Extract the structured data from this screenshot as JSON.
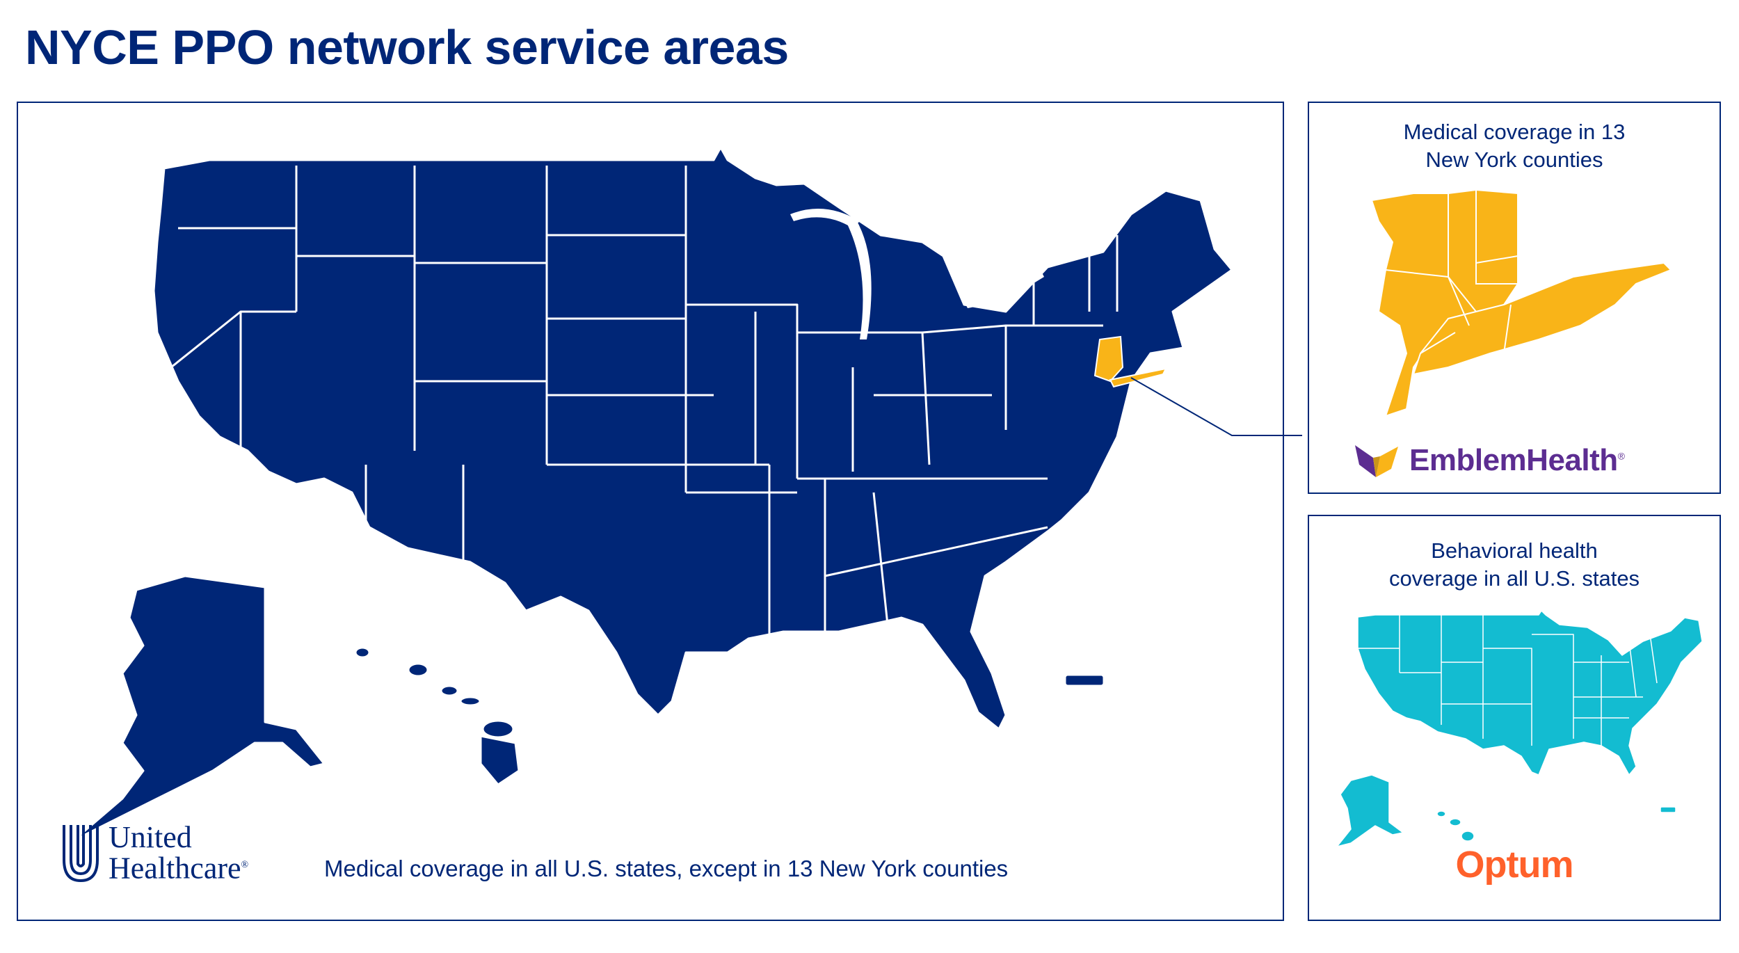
{
  "title": "NYCE PPO network service areas",
  "main": {
    "caption": "Medical coverage in all U.S. states, except in 13 New York counties",
    "logo": {
      "line1": "United",
      "line2": "Healthcare",
      "mark": "®"
    },
    "map_color": "#002677"
  },
  "emblem_panel": {
    "title": "Medical coverage in 13 New York counties",
    "logo_text": "EmblemHealth",
    "logo_mark": "®",
    "map_color": "#f9b418"
  },
  "optum_panel": {
    "title": "Behavioral health coverage in all U.S. states",
    "logo_text": "Optum",
    "map_color": "#13bcd1"
  },
  "colors": {
    "navy": "#002677",
    "gold": "#f9b418",
    "teal": "#13bcd1",
    "purple": "#5c2d91",
    "orange": "#ff612b"
  },
  "icons": [
    "uhc-u-icon",
    "emblem-heart-icon",
    "connector-arrow-icon"
  ]
}
